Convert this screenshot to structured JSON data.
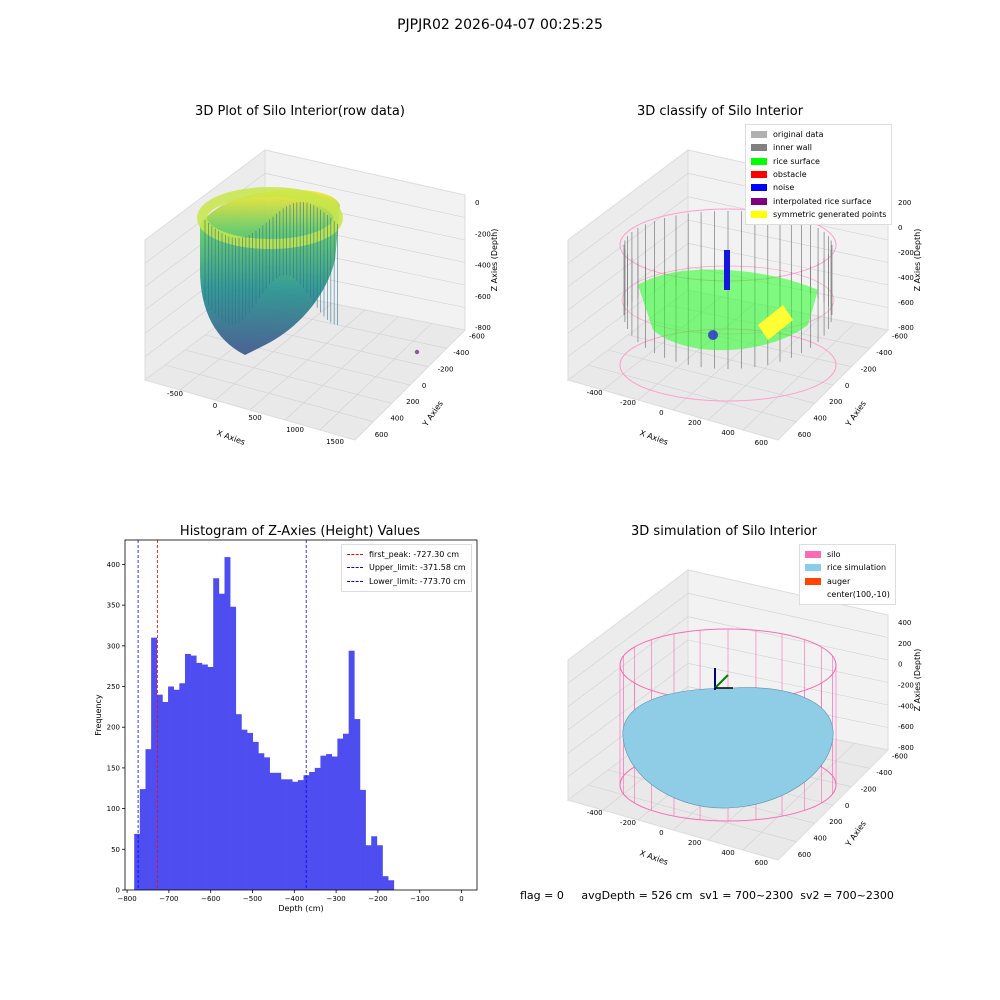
{
  "suptitle": "PJPJR02 2026-04-07 00:25:25",
  "status": {
    "flag": "flag = 0",
    "avg_depth": "avgDepth = 526 cm",
    "sv1": "sv1 = 700~2300",
    "sv2": "sv2 = 700~2300"
  },
  "raw3d": {
    "title": "3D Plot of Silo Interior(row data)",
    "xlabel": "X Axies",
    "ylabel": "Y Axies",
    "zlabel": "Z Axies (Depth)",
    "xticks": [
      "-500",
      "0",
      "500",
      "1000",
      "1500"
    ],
    "yticks": [
      "600",
      "400",
      "200",
      "0",
      "-200",
      "-400",
      "-600"
    ],
    "zticks": [
      "0",
      "-200",
      "-400",
      "-600",
      "-800"
    ]
  },
  "classify3d": {
    "title": "3D classify of Silo Interior",
    "xlabel": "X Axies",
    "ylabel": "Y Axies",
    "zlabel": "Z Axies (Depth)",
    "xticks": [
      "-400",
      "-200",
      "0",
      "200",
      "400",
      "600"
    ],
    "yticks": [
      "600",
      "400",
      "200",
      "0",
      "-200",
      "-400",
      "-600"
    ],
    "zticks": [
      "200",
      "0",
      "-200",
      "-400",
      "-600",
      "-800"
    ],
    "legend": [
      {
        "label": "original data",
        "color": "#b0b0b0"
      },
      {
        "label": "inner wall",
        "color": "#808080"
      },
      {
        "label": "rice surface",
        "color": "#00ff00"
      },
      {
        "label": "obstacle",
        "color": "#ff0000"
      },
      {
        "label": "noise",
        "color": "#0000ff"
      },
      {
        "label": "interpolated rice surface",
        "color": "#800080"
      },
      {
        "label": "symmetric generated points",
        "color": "#ffff00"
      }
    ]
  },
  "sim3d": {
    "title": "3D simulation of Silo Interior",
    "xlabel": "X Axies",
    "ylabel": "Y Axies",
    "zlabel": "Z Axies (Depth)",
    "xticks": [
      "-400",
      "-200",
      "0",
      "200",
      "400",
      "600"
    ],
    "yticks": [
      "600",
      "400",
      "200",
      "0",
      "-200",
      "-400",
      "-600"
    ],
    "zticks": [
      "400",
      "200",
      "0",
      "-200",
      "-400",
      "-600",
      "-800"
    ],
    "legend": [
      {
        "label": "silo",
        "color": "#ff69b4"
      },
      {
        "label": "rice simulation",
        "color": "#87ceeb"
      },
      {
        "label": "auger",
        "color": "#ff4500"
      },
      {
        "label": "center(100,-10)",
        "color": ""
      }
    ]
  },
  "chart_data": {
    "type": "bar",
    "title": "Histogram of Z-Axies (Height) Values",
    "xlabel": "Depth (cm)",
    "ylabel": "Frequency",
    "xlim": [
      -805,
      37
    ],
    "ylim": [
      0,
      430
    ],
    "xticks": [
      -800,
      -700,
      -600,
      -500,
      -400,
      -300,
      -200,
      -100,
      0
    ],
    "yticks": [
      0,
      50,
      100,
      150,
      200,
      250,
      300,
      350,
      400
    ],
    "bar_color": "#4a4af0",
    "bins_start": -783,
    "bin_width": 13.5,
    "values": [
      69,
      124,
      173,
      310,
      240,
      231,
      250,
      246,
      254,
      290,
      288,
      279,
      277,
      274,
      383,
      364,
      409,
      348,
      216,
      197,
      193,
      182,
      168,
      163,
      144,
      144,
      136,
      136,
      133,
      135,
      141,
      145,
      150,
      165,
      167,
      164,
      186,
      192,
      294,
      210,
      123,
      55,
      66,
      55,
      17,
      12
    ],
    "vlines": [
      {
        "x": -727.3,
        "color": "#ff0000",
        "label": "first_peak: -727.30 cm"
      },
      {
        "x": -371.58,
        "color": "#0000ff",
        "label": "Upper_limit: -371.58 cm"
      },
      {
        "x": -773.7,
        "color": "#0000ff",
        "label": "Lower_limit: -773.70 cm"
      }
    ],
    "legend_position": "top-right"
  }
}
